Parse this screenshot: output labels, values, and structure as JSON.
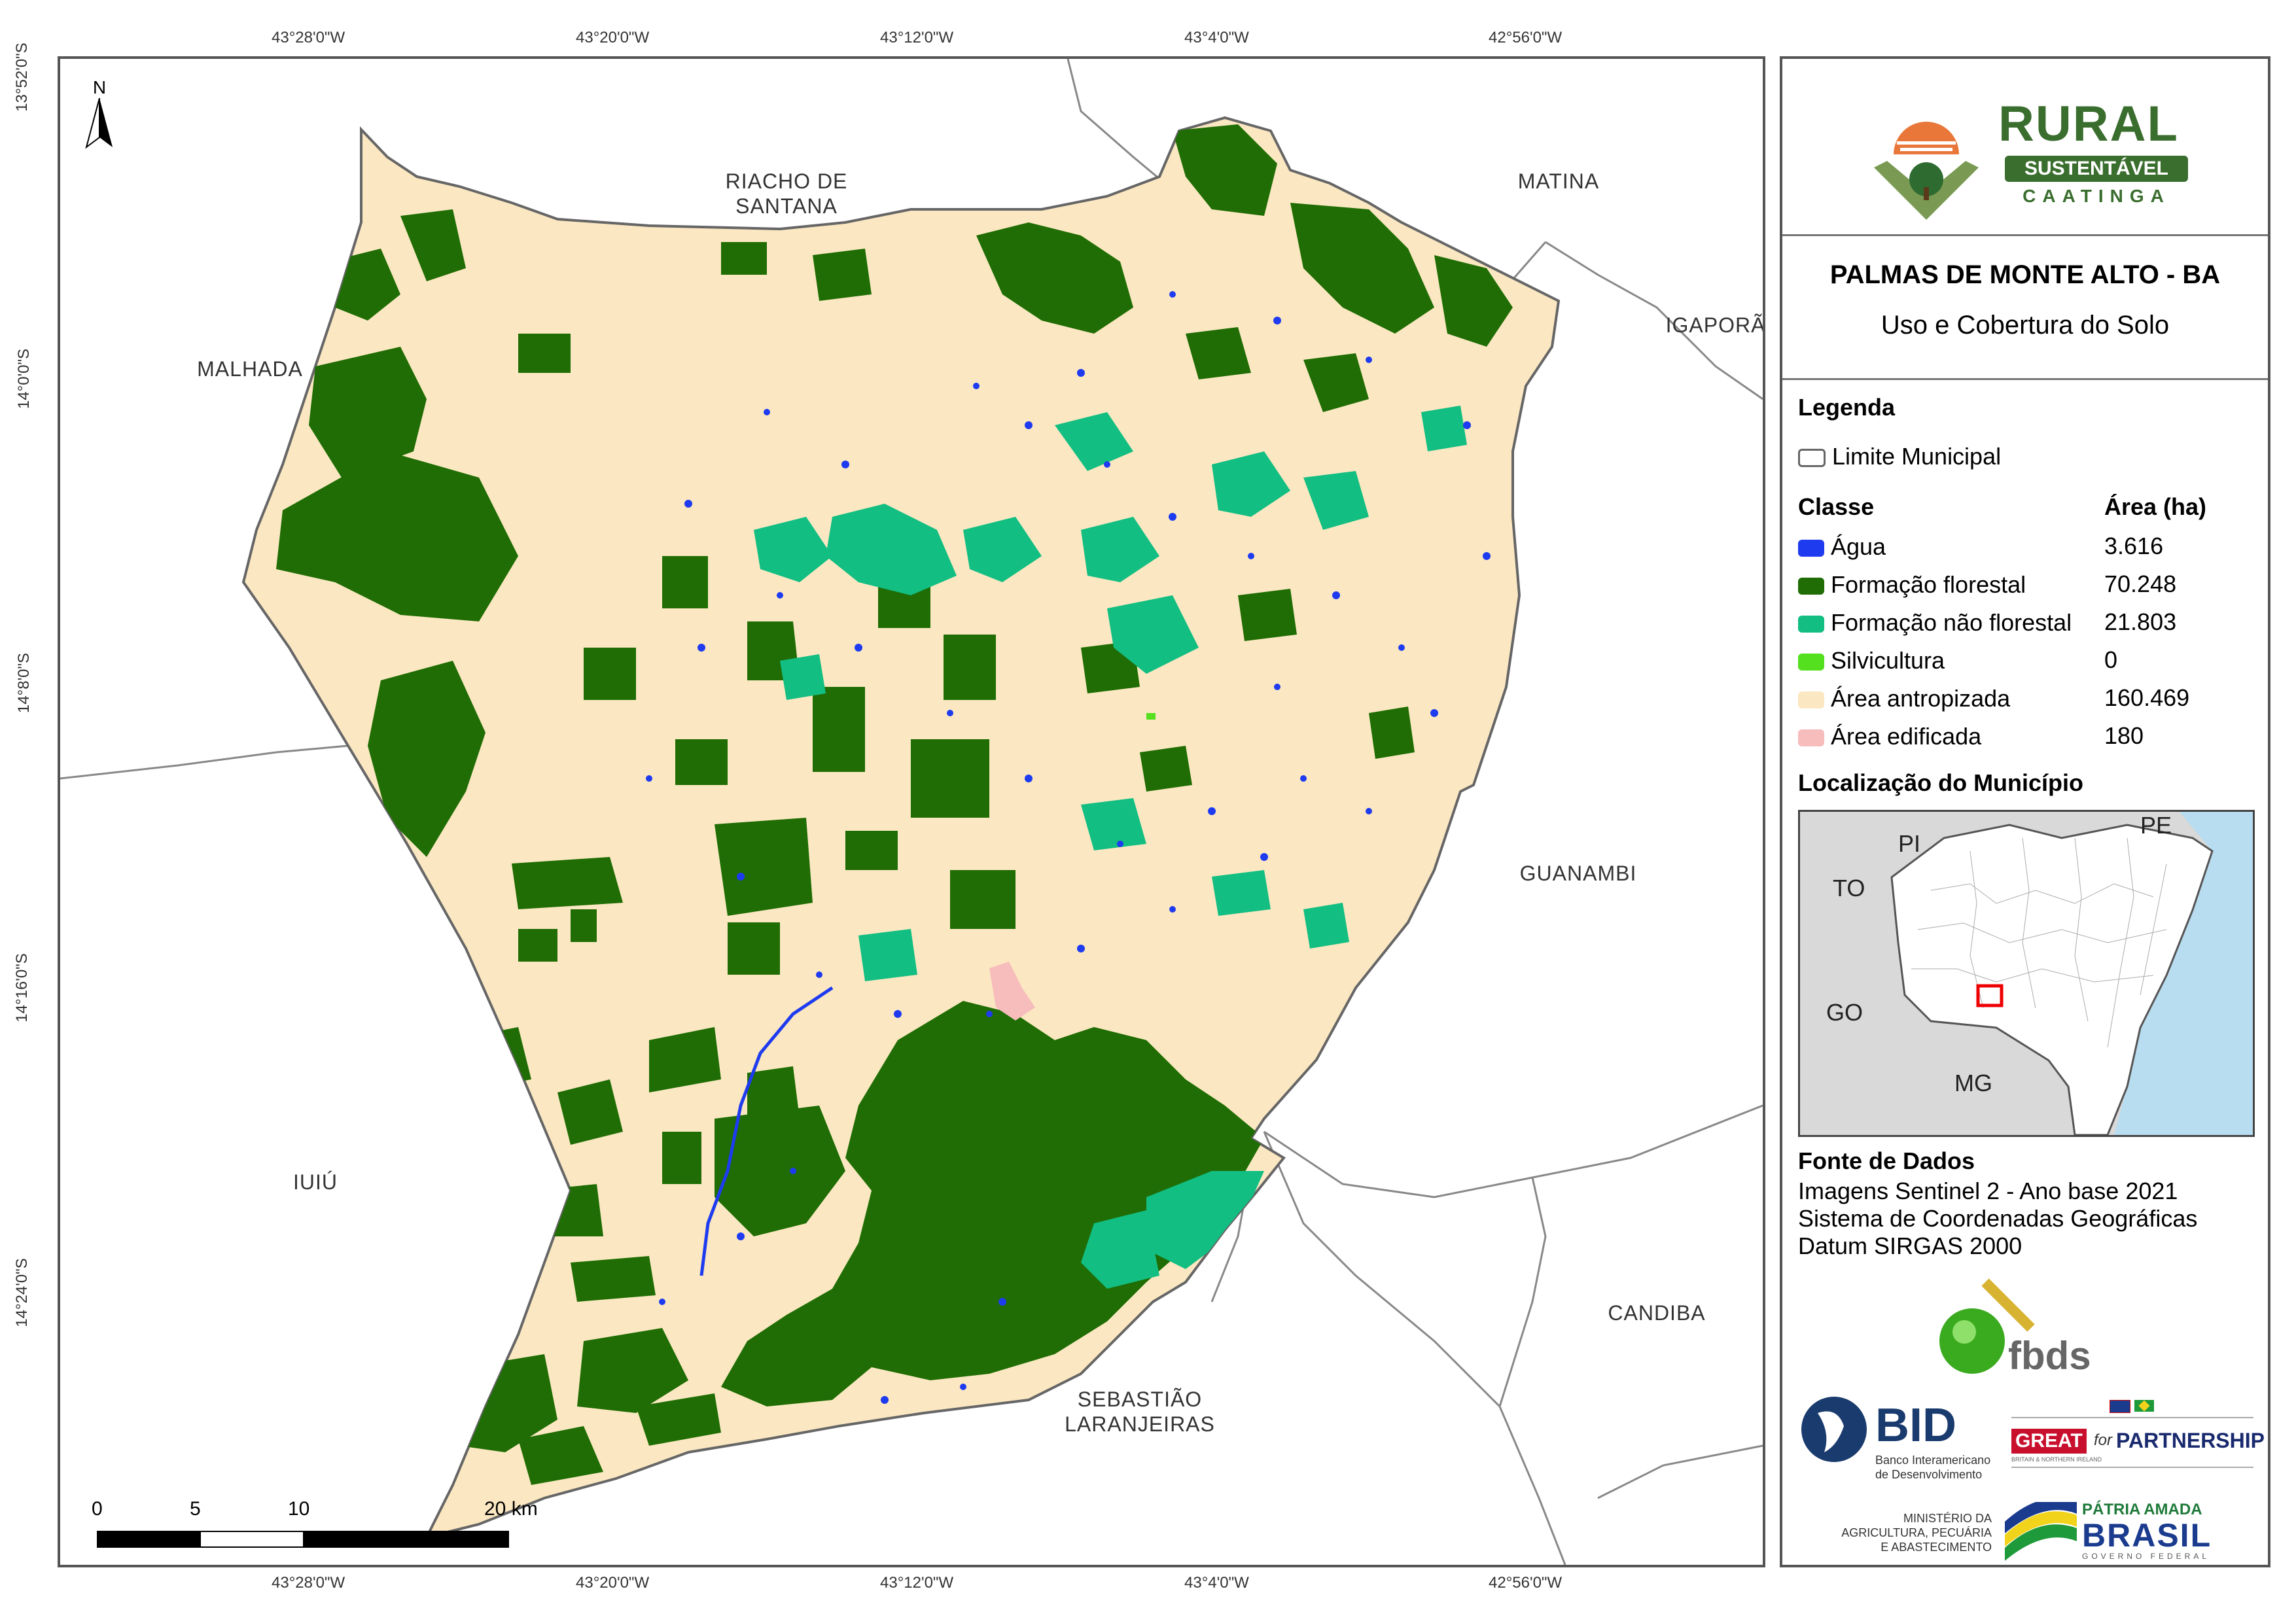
{
  "map": {
    "north_label": "N",
    "coords_top": [
      "43°28'0\"W",
      "43°20'0\"W",
      "43°12'0\"W",
      "43°4'0\"W",
      "42°56'0\"W"
    ],
    "coords_bottom": [
      "43°28'0\"W",
      "43°20'0\"W",
      "43°12'0\"W",
      "43°4'0\"W",
      "42°56'0\"W"
    ],
    "coords_left": [
      "13°52'0\"S",
      "14°0'0\"S",
      "14°8'0\"S",
      "14°16'0\"S",
      "14°24'0\"S"
    ],
    "neighbors": {
      "riacho": "RIACHO DE\nSANTANA",
      "matina": "MATINA",
      "igapora": "IGAPORÃ",
      "malhada": "MALHADA",
      "guanambi": "GUANAMBI",
      "iuiu": "IUIÚ",
      "candiba": "CANDIBA",
      "sebastiao": "SEBASTIÃO\nLARANJEIRAS"
    },
    "scale": {
      "labels": [
        "0",
        "5",
        "10",
        "20 km"
      ],
      "values_km": [
        0,
        5,
        10,
        20
      ]
    },
    "colors": {
      "agua": "#1f3bf0",
      "formacao_florestal": "#1f6d04",
      "formacao_nao_florestal": "#12be82",
      "silvicultura": "#54e01f",
      "area_antropizada": "#fbe8c2",
      "area_edificada": "#f7bcbc"
    }
  },
  "panel": {
    "logo": {
      "word1": "RURAL",
      "word2": "SUSTENTÁVEL",
      "word3": "CAATINGA"
    },
    "title": "PALMAS DE MONTE ALTO - BA",
    "subtitle": "Uso e Cobertura do Solo",
    "legend_title": "Legenda",
    "limite_label": "Limite Municipal",
    "classe_header": "Classe",
    "area_header": "Área (ha)",
    "classes": [
      {
        "label": "Água",
        "area": "3.616",
        "color": "#1f3bf0"
      },
      {
        "label": "Formação florestal",
        "area": "70.248",
        "color": "#1f6d04"
      },
      {
        "label": "Formação não florestal",
        "area": "21.803",
        "color": "#12be82"
      },
      {
        "label": "Silvicultura",
        "area": "0",
        "color": "#54e01f"
      },
      {
        "label": "Área antropizada",
        "area": "160.469",
        "color": "#fbe8c2"
      },
      {
        "label": "Área edificada",
        "area": "180",
        "color": "#f7bcbc"
      }
    ],
    "location_title": "Localização do Município",
    "inset_labels": {
      "pi": "PI",
      "pe": "PE",
      "to": "TO",
      "go": "GO",
      "mg": "MG"
    },
    "source_title": "Fonte de Dados",
    "source_lines": [
      "Imagens Sentinel 2 - Ano base 2021",
      "Sistema de Coordenadas Geográficas",
      "Datum SIRGAS 2000"
    ],
    "fbds": "fbds",
    "bid": {
      "name": "BID",
      "line1": "Banco Interamericano",
      "line2": "de Desenvolvimento"
    },
    "great": {
      "great": "GREAT",
      "for": "for",
      "partnership": "PARTNERSHIP",
      "sub": "BRITAIN & NORTHERN IRELAND"
    },
    "ministerio": [
      "MINISTÉRIO DA",
      "AGRICULTURA, PECUÁRIA",
      "E ABASTECIMENTO"
    ],
    "patria": {
      "line1": "PÁTRIA AMADA",
      "line2": "BRASIL",
      "line3": "GOVERNO FEDERAL"
    }
  }
}
